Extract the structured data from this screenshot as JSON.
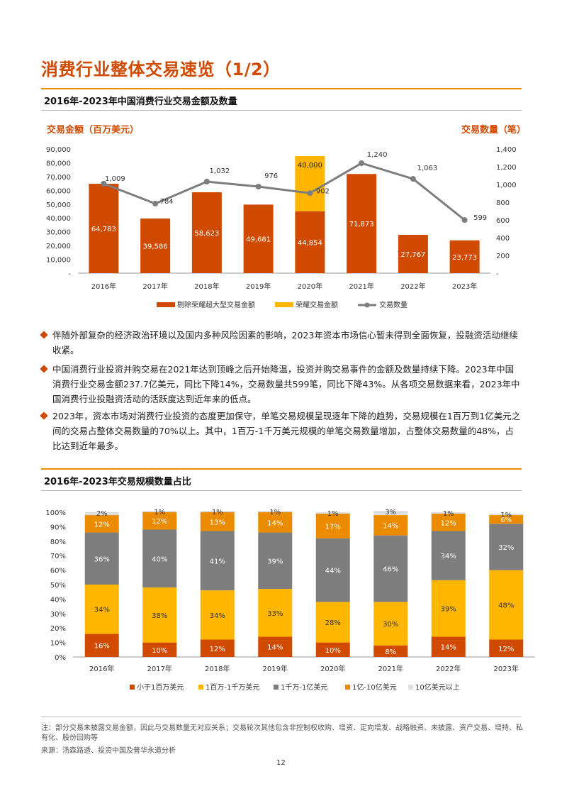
{
  "page": {
    "title": "消费行业整体交易速览（1/2）",
    "page_number": "12"
  },
  "section1": {
    "title": "2016年-2023年中国消费行业交易金额及数量",
    "left_axis_title": "交易金额（百万美元）",
    "right_axis_title": "交易数量（笔）"
  },
  "section2": {
    "title": "2016年-2023年交易规模数量占比"
  },
  "bullets": [
    "伴随外部复杂的经济政治环境以及国内多种风险因素的影响，2023年资本市场信心暂未得到全面恢复，投融资活动继续收紧。",
    "中国消费行业投资并购交易在2021年达到顶峰之后开始降温，投资并购交易事件的金额及数量持续下降。2023年中国消费行业交易金额237.7亿美元，同比下降14%，交易数量共599笔，同比下降43%。从各项交易数据来看，2023年中国消费行业投融资活动的活跃度达到近年来的低点。",
    "2023年，资本市场对消费行业投资的态度更加保守，单笔交易规模呈现逐年下降的趋势，交易规模在1百万到1亿美元之间的交易占整体交易数量的70%以上。其中，1百万-1千万美元规模的单笔交易数量增加，占整体交易数量的48%，占比达到近年最多。"
  ],
  "footnote": "注：部分交易未披露交易金额，因此与交易数量无对应关系；交易轮次其他包含非控制权收购、增资、定向增发、战略融资、未披露、资产交易、增持、私有化、股份回购等",
  "source": "来源：汤森路透、投资中国及普华永道分析",
  "colors": {
    "accent": "#d04a02",
    "orange": "#eb8c00",
    "yellow": "#ffb600",
    "grey": "#7d7d7d",
    "light_grey": "#dedede"
  },
  "chart_data": [
    {
      "type": "bar",
      "stacked": true,
      "categories": [
        "2016年",
        "2017年",
        "2018年",
        "2019年",
        "2020年",
        "2021年",
        "2022年",
        "2023年"
      ],
      "series": [
        {
          "name": "剔除荣耀超大型交易金额",
          "values": [
            64783,
            39586,
            58623,
            49681,
            44854,
            71873,
            27767,
            23773
          ],
          "color": "#d04a02",
          "axis": "left"
        },
        {
          "name": "荣耀交易金额",
          "values": [
            null,
            null,
            null,
            null,
            40000,
            null,
            null,
            null
          ],
          "color": "#ffb600",
          "axis": "left"
        },
        {
          "name": "交易数量",
          "type": "line",
          "values": [
            1009,
            784,
            1032,
            976,
            902,
            1240,
            1063,
            599
          ],
          "color": "#7d7d7d",
          "axis": "right"
        }
      ],
      "left_ticks": [
        "90,000",
        "80,000",
        "70,000",
        "60,000",
        "50,000",
        "40,000",
        "30,000",
        "20,000",
        "10,000",
        "-"
      ],
      "right_ticks": [
        "1,400",
        "1,200",
        "1,000",
        "800",
        "600",
        "400",
        "200",
        "-"
      ],
      "ylim_left": [
        0,
        90000
      ],
      "ylim_right": [
        0,
        1400
      ],
      "value_labels_bar": [
        "64,783",
        "39,586",
        "58,623",
        "49,681",
        "44,854",
        "71,873",
        "27,767",
        "23,773"
      ],
      "value_label_honor": "40,000",
      "value_labels_line": [
        "1,009",
        "784",
        "1,032",
        "976",
        "902",
        "1,240",
        "1,063",
        "599"
      ],
      "legend_position": "bottom"
    },
    {
      "type": "bar",
      "stacked": true,
      "percent": true,
      "categories": [
        "2016年",
        "2017年",
        "2018年",
        "2019年",
        "2020年",
        "2021年",
        "2022年",
        "2023年"
      ],
      "series": [
        {
          "name": "小于1百万美元",
          "values": [
            16,
            10,
            12,
            14,
            10,
            8,
            14,
            12
          ],
          "color": "#d04a02"
        },
        {
          "name": "1百万-1千万美元",
          "values": [
            34,
            38,
            34,
            33,
            28,
            30,
            39,
            48
          ],
          "color": "#ffb600"
        },
        {
          "name": "1千万-1亿美元",
          "values": [
            36,
            40,
            41,
            39,
            44,
            46,
            34,
            32
          ],
          "color": "#7d7d7d"
        },
        {
          "name": "1亿-10亿美元",
          "values": [
            12,
            12,
            13,
            14,
            17,
            14,
            12,
            6
          ],
          "color": "#eb8c00"
        },
        {
          "name": "10亿美元以上",
          "values": [
            2,
            1,
            1,
            1,
            1,
            3,
            1,
            1
          ],
          "color": "#dedede"
        }
      ],
      "y_ticks": [
        "100%",
        "90%",
        "80%",
        "70%",
        "60%",
        "50%",
        "40%",
        "30%",
        "20%",
        "10%",
        "0%"
      ],
      "ylim": [
        0,
        100
      ],
      "legend_position": "bottom"
    }
  ]
}
